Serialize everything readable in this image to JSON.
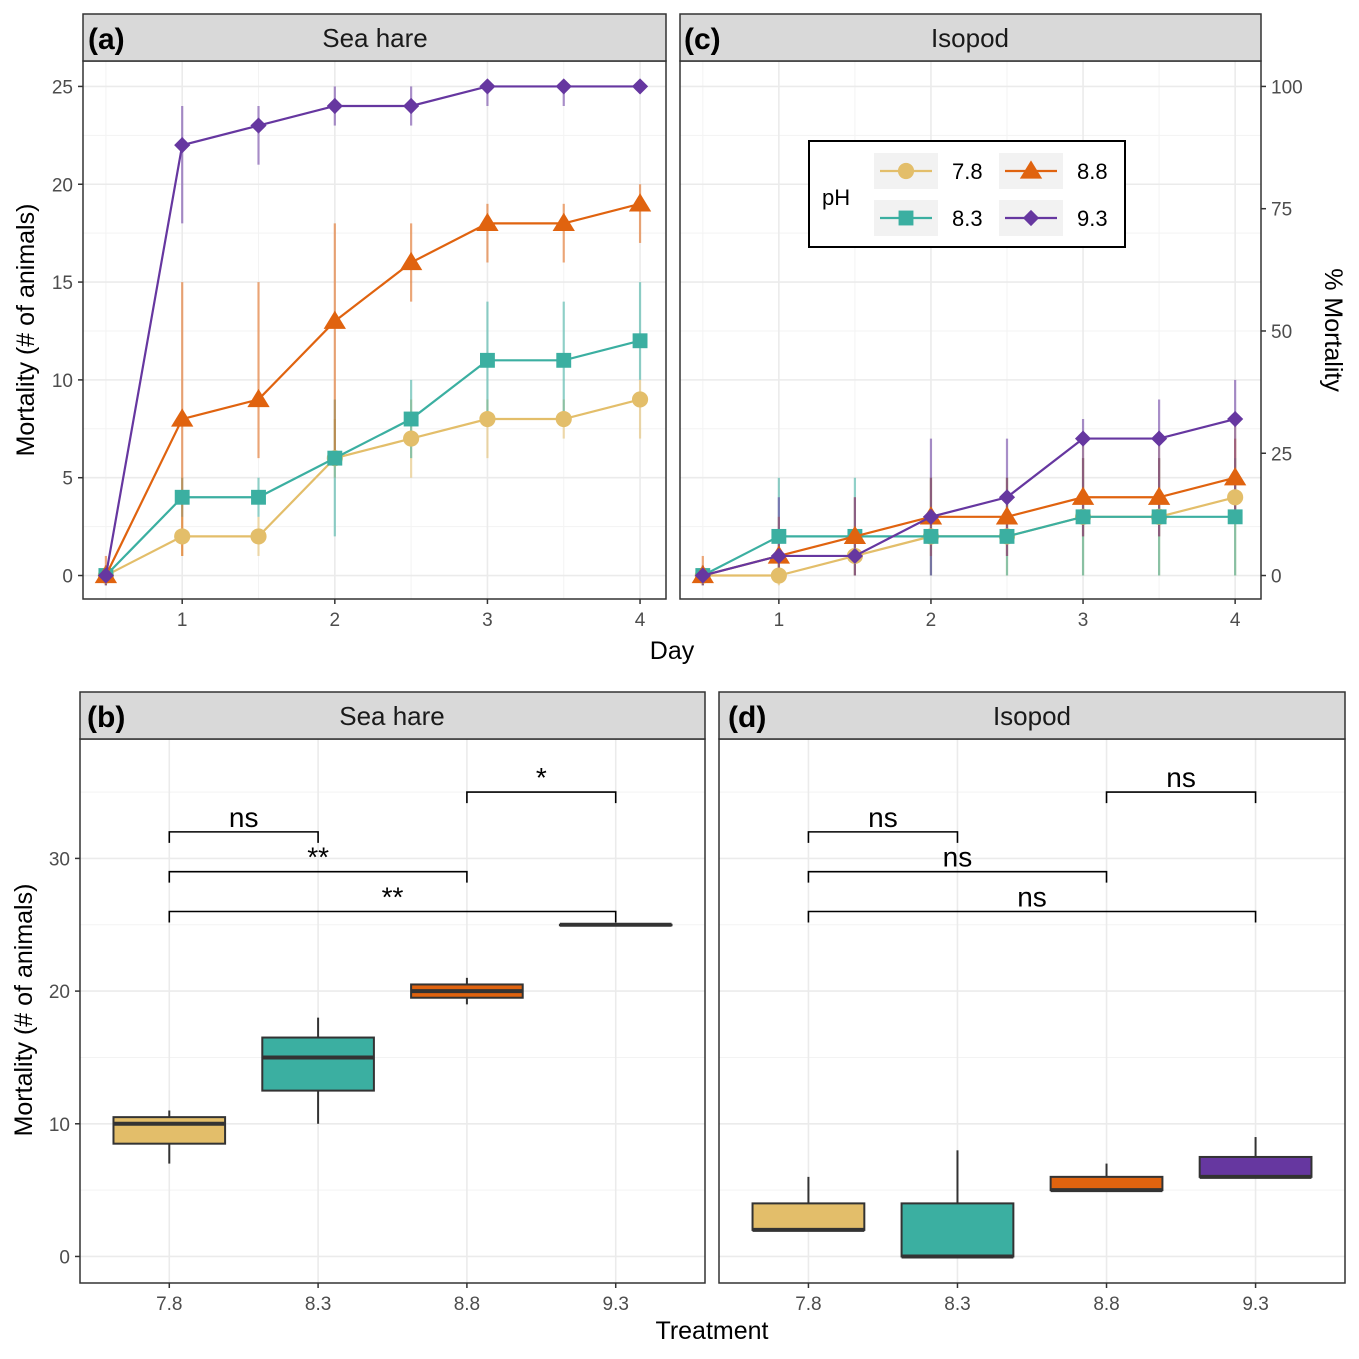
{
  "figure": {
    "top_xlabel": "Day",
    "top_ylabel_left": "Mortality (# of animals)",
    "top_ylabel_right": "% Mortality",
    "bottom_xlabel": "Treatment",
    "bottom_ylabel": "Mortality (# of animals)"
  },
  "legend": {
    "title": "pH",
    "placement": "top-left inside panel (c)",
    "entries": [
      {
        "label": "7.8",
        "color": "#E3BE6A",
        "marker": "circle"
      },
      {
        "label": "8.8",
        "color": "#E0630F",
        "marker": "triangle"
      },
      {
        "label": "8.3",
        "color": "#3BAFA1",
        "marker": "square"
      },
      {
        "label": "9.3",
        "color": "#6637A0",
        "marker": "diamond"
      }
    ]
  },
  "colors": {
    "7.8": "#E3BE6A",
    "8.3": "#3BAFA1",
    "8.8": "#E0630F",
    "9.3": "#6637A0",
    "strip_bg": "#D9D9D9",
    "grid": "#EBEBEB"
  },
  "chart_data": [
    {
      "type": "line",
      "panel": "(a)",
      "title": "Sea hare",
      "xlabel": "Day",
      "ylabel": "Mortality (# of animals)",
      "x": [
        0.5,
        1,
        1.5,
        2,
        2.5,
        3,
        3.5,
        4
      ],
      "x_ticks": [
        "1",
        "2",
        "3",
        "4"
      ],
      "y_ticks": [
        "0",
        "5",
        "10",
        "15",
        "20",
        "25"
      ],
      "xlim": [
        0.35,
        4.17
      ],
      "ylim": [
        -1.2,
        26.3
      ],
      "grid": true,
      "series": [
        {
          "name": "7.8",
          "values": [
            0,
            2,
            2,
            6,
            7,
            8,
            8,
            9
          ],
          "err_low": [
            -0.5,
            1,
            1,
            5,
            5,
            6,
            7,
            7
          ],
          "err_high": [
            0.5,
            3,
            3,
            8,
            9,
            9,
            9,
            10
          ]
        },
        {
          "name": "8.3",
          "values": [
            0,
            4,
            4,
            6,
            8,
            11,
            11,
            12
          ],
          "err_low": [
            -0.5,
            3,
            3,
            2,
            6,
            8,
            8,
            10
          ],
          "err_high": [
            0.5,
            5,
            5,
            9,
            10,
            14,
            14,
            15
          ]
        },
        {
          "name": "8.8",
          "values": [
            0,
            8,
            9,
            13,
            16,
            18,
            18,
            19
          ],
          "err_low": [
            -0.5,
            1,
            6,
            6,
            14,
            16,
            16,
            17
          ],
          "err_high": [
            1,
            15,
            15,
            18,
            18,
            19,
            19,
            20
          ]
        },
        {
          "name": "9.3",
          "values": [
            0,
            22,
            23,
            24,
            24,
            25,
            25,
            25
          ],
          "err_low": [
            -0.5,
            18,
            21,
            23,
            23,
            24,
            24,
            25
          ],
          "err_high": [
            0.5,
            24,
            24,
            25,
            25,
            25,
            25,
            25
          ]
        }
      ]
    },
    {
      "type": "line",
      "panel": "(c)",
      "title": "Isopod",
      "xlabel": "Day",
      "ylabel_right": "% Mortality",
      "x": [
        0.5,
        1,
        1.5,
        2,
        2.5,
        3,
        3.5,
        4
      ],
      "x_ticks": [
        "1",
        "2",
        "3",
        "4"
      ],
      "y_ticks_right": [
        "0",
        "25",
        "50",
        "75",
        "100"
      ],
      "xlim": [
        0.35,
        4.17
      ],
      "ylim": [
        -1.2,
        26.3
      ],
      "grid": true,
      "series": [
        {
          "name": "7.8",
          "values": [
            0,
            0,
            1,
            2,
            2,
            3,
            3,
            4
          ],
          "err_low": [
            -0.5,
            -0.5,
            0,
            0,
            0,
            0,
            0,
            0
          ],
          "err_high": [
            0.5,
            1,
            2,
            5,
            5,
            7,
            7,
            8
          ]
        },
        {
          "name": "8.3",
          "values": [
            0,
            2,
            2,
            2,
            2,
            3,
            3,
            3
          ],
          "err_low": [
            -0.5,
            0,
            0,
            0,
            0,
            0,
            0,
            0
          ],
          "err_high": [
            0.5,
            5,
            5,
            5,
            5,
            6,
            6,
            6
          ]
        },
        {
          "name": "8.8",
          "values": [
            0,
            1,
            2,
            3,
            3,
            4,
            4,
            5
          ],
          "err_low": [
            -0.5,
            0,
            0,
            1,
            1,
            2,
            2,
            3
          ],
          "err_high": [
            1,
            3,
            4,
            5,
            5,
            6,
            6,
            7
          ]
        },
        {
          "name": "9.3",
          "values": [
            0,
            1,
            1,
            3,
            4,
            7,
            7,
            8
          ],
          "err_low": [
            -0.5,
            0,
            0,
            0,
            1,
            2,
            2,
            3
          ],
          "err_high": [
            0.5,
            4,
            4,
            7,
            7,
            8,
            9,
            10
          ]
        }
      ]
    },
    {
      "type": "box",
      "panel": "(b)",
      "title": "Sea hare",
      "xlabel": "Treatment",
      "ylabel": "Mortality (# of animals)",
      "categories": [
        "7.8",
        "8.3",
        "8.8",
        "9.3"
      ],
      "y_ticks": [
        "0",
        "10",
        "20",
        "30"
      ],
      "ylim": [
        -2,
        39
      ],
      "grid": true,
      "boxes": [
        {
          "name": "7.8",
          "min": 7,
          "q1": 8.5,
          "median": 10,
          "q3": 10.5,
          "max": 11
        },
        {
          "name": "8.3",
          "min": 10,
          "q1": 12.5,
          "median": 15,
          "q3": 16.5,
          "max": 18
        },
        {
          "name": "8.8",
          "min": 19,
          "q1": 19.5,
          "median": 20,
          "q3": 20.5,
          "max": 21
        },
        {
          "name": "9.3",
          "min": 25,
          "q1": 25,
          "median": 25,
          "q3": 25,
          "max": 25
        }
      ],
      "comparisons": [
        {
          "from": "7.8",
          "to": "8.3",
          "label": "ns",
          "y": 32
        },
        {
          "from": "8.8",
          "to": "9.3",
          "label": "*",
          "y": 35
        },
        {
          "from": "7.8",
          "to": "8.8",
          "label": "**",
          "y": 29
        },
        {
          "from": "7.8",
          "to": "9.3",
          "label": "**",
          "y": 26
        }
      ]
    },
    {
      "type": "box",
      "panel": "(d)",
      "title": "Isopod",
      "xlabel": "Treatment",
      "categories": [
        "7.8",
        "8.3",
        "8.8",
        "9.3"
      ],
      "ylim": [
        -2,
        39
      ],
      "grid": true,
      "boxes": [
        {
          "name": "7.8",
          "min": 2,
          "q1": 2,
          "median": 2,
          "q3": 4,
          "max": 6
        },
        {
          "name": "8.3",
          "min": 0,
          "q1": 0,
          "median": 0,
          "q3": 4,
          "max": 8
        },
        {
          "name": "8.8",
          "min": 5,
          "q1": 5,
          "median": 5,
          "q3": 6,
          "max": 7
        },
        {
          "name": "9.3",
          "min": 6,
          "q1": 6,
          "median": 6,
          "q3": 7.5,
          "max": 9
        }
      ],
      "comparisons": [
        {
          "from": "7.8",
          "to": "8.3",
          "label": "ns",
          "y": 32
        },
        {
          "from": "8.8",
          "to": "9.3",
          "label": "ns",
          "y": 35
        },
        {
          "from": "7.8",
          "to": "8.8",
          "label": "ns",
          "y": 29
        },
        {
          "from": "7.8",
          "to": "9.3",
          "label": "ns",
          "y": 26
        }
      ]
    }
  ]
}
